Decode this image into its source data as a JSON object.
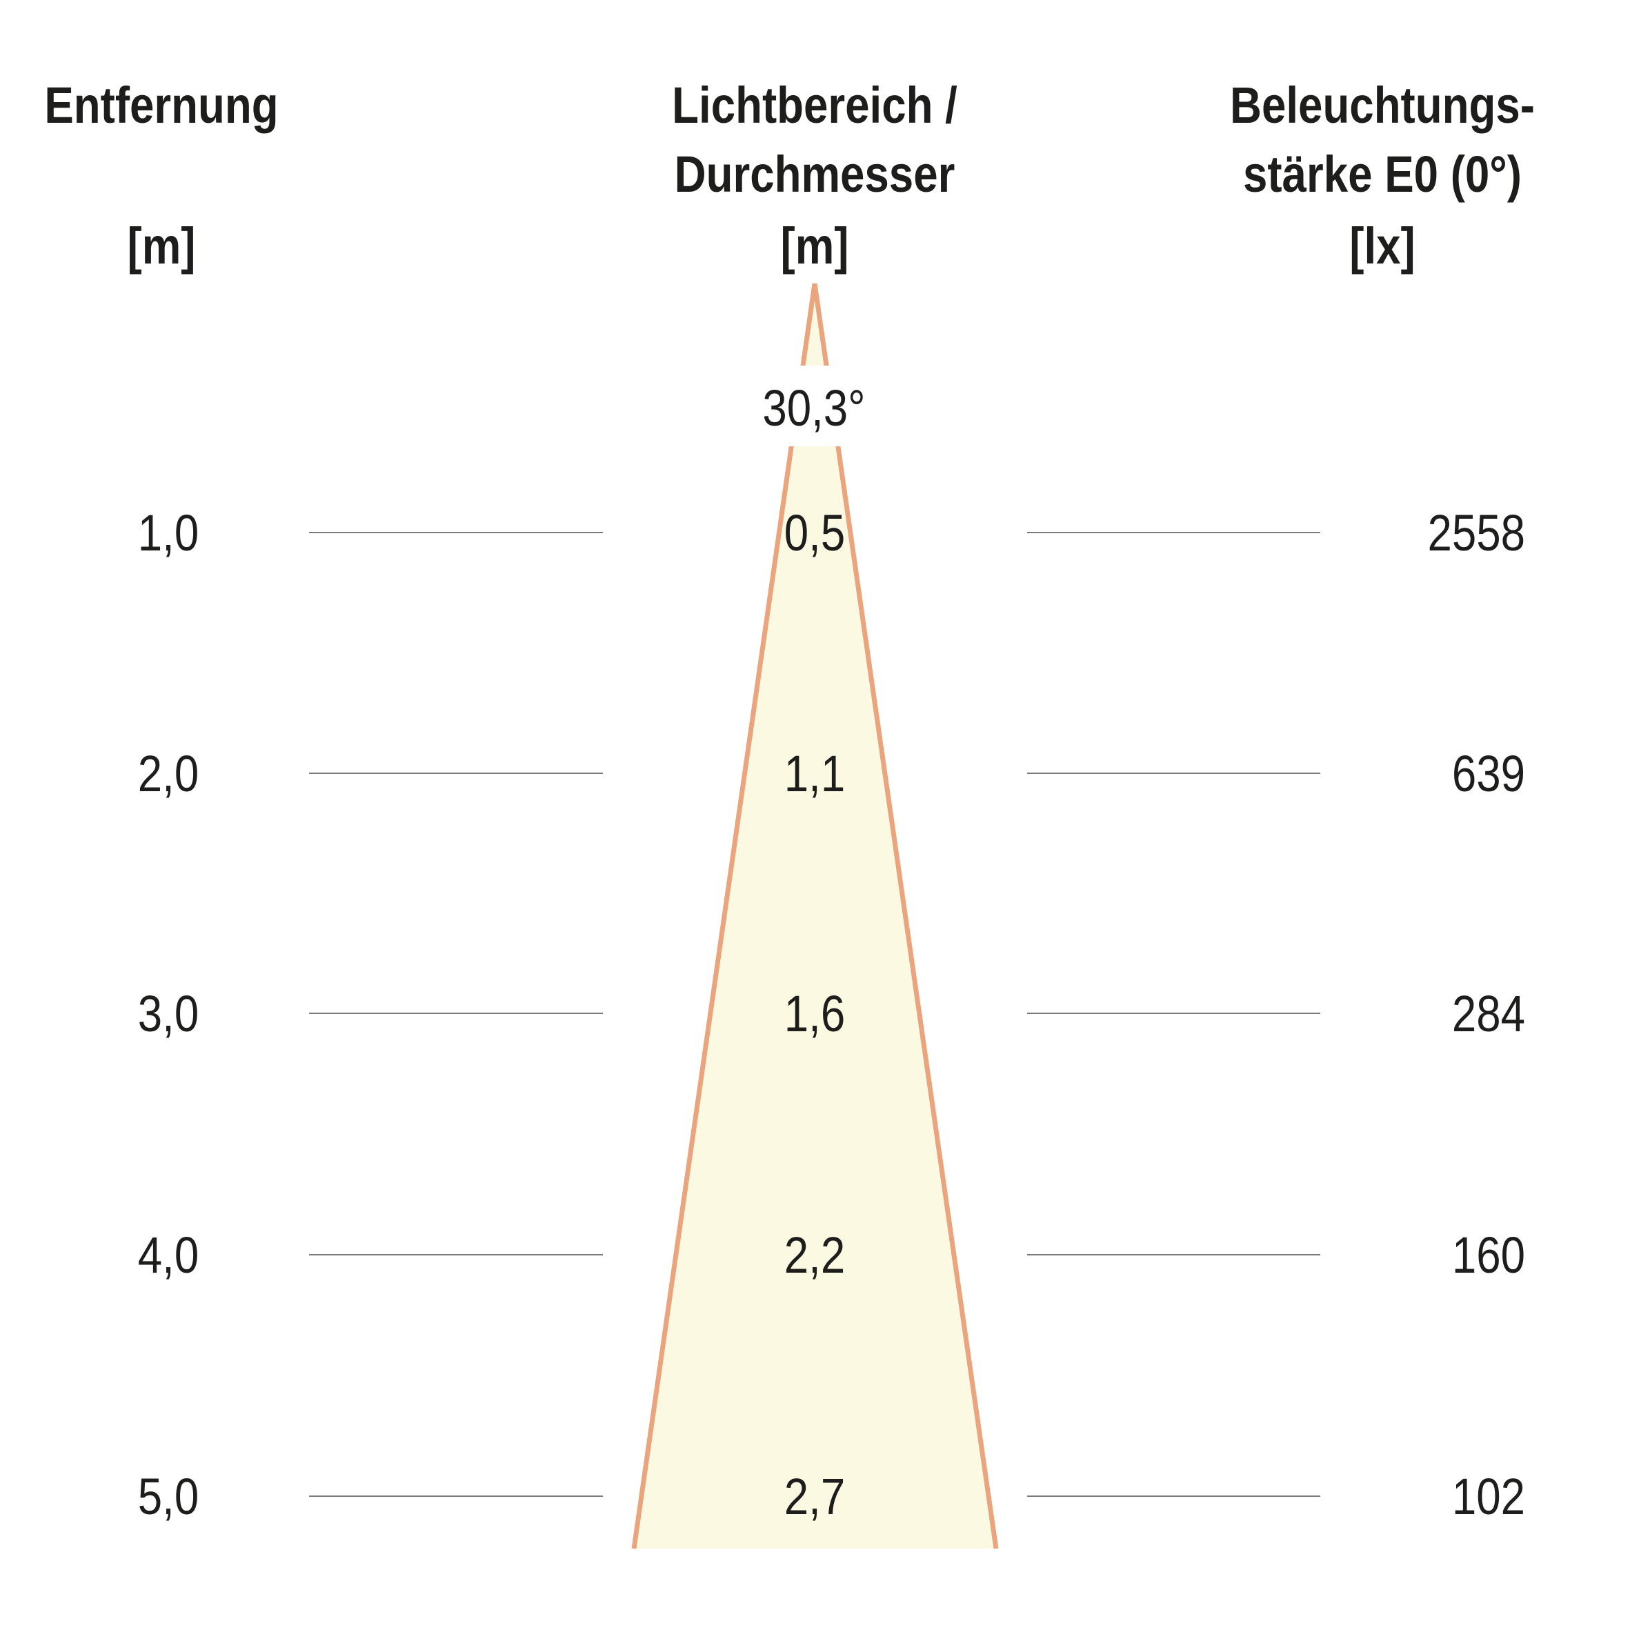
{
  "headers": {
    "distance": {
      "line1": "Entfernung",
      "unit": "[m]"
    },
    "diameter": {
      "line1": "Lichtbereich /",
      "line2": "Durchmesser",
      "unit": "[m]"
    },
    "illuminance": {
      "line1": "Beleuchtungs-",
      "line2": "stärke E0 (0°)",
      "unit": "[lx]"
    }
  },
  "beam_angle": "30,3°",
  "rows": [
    {
      "distance": "1,0",
      "diameter": "0,5",
      "illuminance": "2558"
    },
    {
      "distance": "2,0",
      "diameter": "1,1",
      "illuminance": "639"
    },
    {
      "distance": "3,0",
      "diameter": "1,6",
      "illuminance": "284"
    },
    {
      "distance": "4,0",
      "diameter": "2,2",
      "illuminance": "160"
    },
    {
      "distance": "5,0",
      "diameter": "2,7",
      "illuminance": "102"
    }
  ],
  "colors": {
    "cone_fill": "#fcf9e3",
    "cone_stroke": "#eba57e",
    "line": "#7a7a7a",
    "text": "#1d1d1b"
  }
}
